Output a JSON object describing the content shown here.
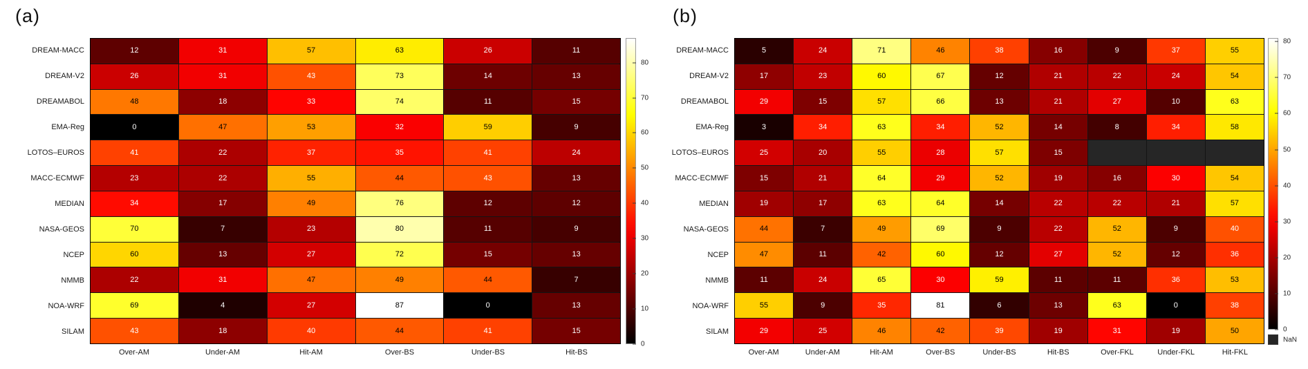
{
  "figure": {
    "background": "#ffffff"
  },
  "chart_data": [
    {
      "type": "heatmap",
      "panel_label": "(a)",
      "colormap": "hot",
      "vmin": 0,
      "vmax": 87,
      "grid": true,
      "legend_position": "right-colorbar",
      "rows": [
        "DREAM-MACC",
        "DREAM-V2",
        "DREAMABOL",
        "EMA-Reg",
        "LOTOS–EUROS",
        "MACC-ECMWF",
        "MEDIAN",
        "NASA-GEOS",
        "NCEP",
        "NMMB",
        "NOA-WRF",
        "SILAM"
      ],
      "columns": [
        "Over-AM",
        "Under-AM",
        "Hit-AM",
        "Over-BS",
        "Under-BS",
        "Hit-BS"
      ],
      "values": [
        [
          12,
          31,
          57,
          63,
          26,
          11
        ],
        [
          26,
          31,
          43,
          73,
          14,
          13
        ],
        [
          48,
          18,
          33,
          74,
          11,
          15
        ],
        [
          0,
          47,
          53,
          32,
          59,
          9
        ],
        [
          41,
          22,
          37,
          35,
          41,
          24
        ],
        [
          23,
          22,
          55,
          44,
          43,
          13
        ],
        [
          34,
          17,
          49,
          76,
          12,
          12
        ],
        [
          70,
          7,
          23,
          80,
          11,
          9
        ],
        [
          60,
          13,
          27,
          72,
          15,
          13
        ],
        [
          22,
          31,
          47,
          49,
          44,
          7
        ],
        [
          69,
          4,
          27,
          87,
          0,
          13
        ],
        [
          43,
          18,
          40,
          44,
          41,
          15
        ]
      ],
      "colorbar_ticks": [
        0,
        10,
        20,
        30,
        40,
        50,
        60,
        70,
        80
      ]
    },
    {
      "type": "heatmap",
      "panel_label": "(b)",
      "colormap": "hot",
      "vmin": 0,
      "vmax": 81,
      "grid": true,
      "legend_position": "right-colorbar",
      "rows": [
        "DREAM-MACC",
        "DREAM-V2",
        "DREAMABOL",
        "EMA-Reg",
        "LOTOS–EUROS",
        "MACC-ECMWF",
        "MEDIAN",
        "NASA-GEOS",
        "NCEP",
        "NMMB",
        "NOA-WRF",
        "SILAM"
      ],
      "columns": [
        "Over-AM",
        "Under-AM",
        "Hit-AM",
        "Over-BS",
        "Under-BS",
        "Hit-BS",
        "Over-FKL",
        "Under-FKL",
        "Hit-FKL"
      ],
      "values": [
        [
          5,
          24,
          71,
          46,
          38,
          16,
          9,
          37,
          55
        ],
        [
          17,
          23,
          60,
          67,
          12,
          21,
          22,
          24,
          54
        ],
        [
          29,
          15,
          57,
          66,
          13,
          21,
          27,
          10,
          63
        ],
        [
          3,
          34,
          63,
          34,
          52,
          14,
          8,
          34,
          58
        ],
        [
          25,
          20,
          55,
          28,
          57,
          15,
          null,
          null,
          null
        ],
        [
          15,
          21,
          64,
          29,
          52,
          19,
          16,
          30,
          54
        ],
        [
          19,
          17,
          63,
          64,
          14,
          22,
          22,
          21,
          57
        ],
        [
          44,
          7,
          49,
          69,
          9,
          22,
          52,
          9,
          40
        ],
        [
          47,
          11,
          42,
          60,
          12,
          27,
          52,
          12,
          36
        ],
        [
          11,
          24,
          65,
          30,
          59,
          11,
          11,
          36,
          53
        ],
        [
          55,
          9,
          35,
          81,
          6,
          13,
          63,
          0,
          38
        ],
        [
          29,
          25,
          46,
          42,
          39,
          19,
          31,
          19,
          50
        ]
      ],
      "colorbar_ticks": [
        0,
        10,
        20,
        30,
        40,
        50,
        60,
        70,
        80
      ],
      "nan_label": "NaN",
      "nan_color": "#262626"
    }
  ]
}
